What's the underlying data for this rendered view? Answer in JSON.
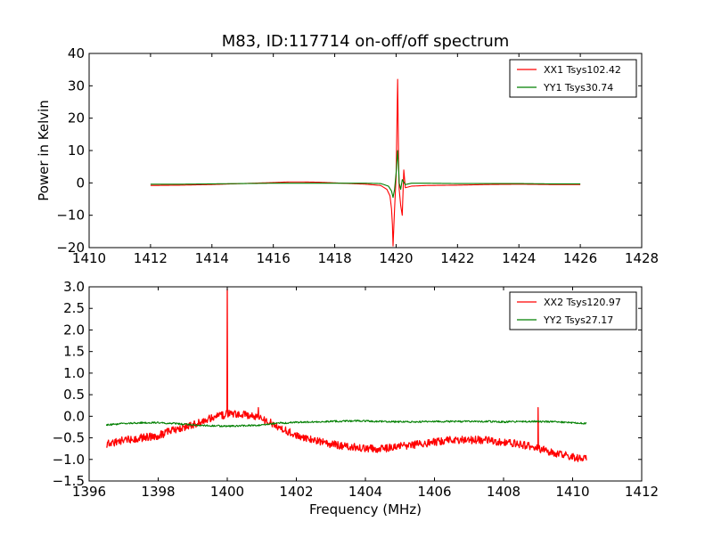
{
  "chart_data": [
    {
      "type": "line",
      "title": "M83, ID:117714 on-off/off spectrum",
      "xlabel": "",
      "ylabel": "Power in Kelvin",
      "xlim": [
        1410,
        1428
      ],
      "ylim": [
        -20,
        40
      ],
      "xticks": [
        1410,
        1412,
        1414,
        1416,
        1418,
        1420,
        1422,
        1424,
        1426,
        1428
      ],
      "yticks": [
        -20,
        -10,
        0,
        10,
        20,
        30,
        40
      ],
      "grid": false,
      "legend": "top-right",
      "series": [
        {
          "name": "XX1 Tsys102.42",
          "color": "#ff0000",
          "x": [
            1412.0,
            1413.0,
            1414.0,
            1415.0,
            1416.0,
            1416.5,
            1417.0,
            1417.5,
            1418.0,
            1418.5,
            1419.0,
            1419.5,
            1419.7,
            1419.8,
            1419.85,
            1419.88,
            1419.9,
            1419.95,
            1420.0,
            1420.02,
            1420.05,
            1420.08,
            1420.1,
            1420.15,
            1420.2,
            1420.25,
            1420.3,
            1420.5,
            1421.0,
            1422.0,
            1423.0,
            1424.0,
            1425.0,
            1426.0
          ],
          "y": [
            -0.8,
            -0.7,
            -0.5,
            -0.2,
            0.1,
            0.3,
            0.3,
            0.2,
            0.0,
            -0.2,
            -0.4,
            -0.8,
            -2.0,
            -4.0,
            -8.0,
            -13.0,
            -19.5,
            -8.0,
            2.0,
            14.0,
            32.0,
            8.0,
            -2.0,
            -7.0,
            -10.0,
            4.0,
            -1.5,
            -1.0,
            -0.8,
            -0.7,
            -0.5,
            -0.4,
            -0.5,
            -0.5
          ]
        },
        {
          "name": "YY1 Tsys30.74",
          "color": "#007f00",
          "x": [
            1412.0,
            1413.0,
            1414.0,
            1415.0,
            1416.0,
            1417.0,
            1418.0,
            1419.0,
            1419.5,
            1419.75,
            1419.85,
            1419.9,
            1419.95,
            1420.0,
            1420.05,
            1420.08,
            1420.1,
            1420.15,
            1420.2,
            1420.3,
            1420.5,
            1421.0,
            1422.0,
            1423.0,
            1424.0,
            1425.0,
            1426.0
          ],
          "y": [
            -0.4,
            -0.4,
            -0.3,
            -0.2,
            -0.1,
            -0.1,
            -0.1,
            -0.1,
            -0.2,
            -1.0,
            -2.5,
            -4.5,
            -2.0,
            3.0,
            10.0,
            5.0,
            0.0,
            -2.0,
            1.0,
            -0.5,
            -0.1,
            -0.1,
            -0.2,
            -0.2,
            -0.2,
            -0.3,
            -0.3
          ]
        }
      ]
    },
    {
      "type": "line",
      "title": "",
      "xlabel": "Frequency (MHz)",
      "ylabel": "",
      "xlim": [
        1396,
        1412
      ],
      "ylim": [
        -1.5,
        3.0
      ],
      "xticks": [
        1396,
        1398,
        1400,
        1402,
        1404,
        1406,
        1408,
        1410,
        1412
      ],
      "yticks": [
        -1.5,
        -1.0,
        -0.5,
        0.0,
        0.5,
        1.0,
        1.5,
        2.0,
        2.5,
        3.0
      ],
      "grid": false,
      "legend": "top-right",
      "series": [
        {
          "name": "XX2 Tsys120.97",
          "color": "#ff0000",
          "x": [
            1396.5,
            1397.0,
            1397.5,
            1398.0,
            1398.5,
            1399.0,
            1399.5,
            1400.0,
            1400.5,
            1401.0,
            1401.5,
            1402.0,
            1402.5,
            1403.0,
            1403.5,
            1404.0,
            1404.5,
            1405.0,
            1405.5,
            1406.0,
            1406.5,
            1407.0,
            1407.5,
            1408.0,
            1408.5,
            1409.0,
            1409.5,
            1410.0,
            1410.4
          ],
          "y": [
            -0.65,
            -0.55,
            -0.5,
            -0.45,
            -0.3,
            -0.2,
            -0.05,
            0.05,
            0.05,
            -0.05,
            -0.25,
            -0.45,
            -0.55,
            -0.65,
            -0.7,
            -0.75,
            -0.75,
            -0.7,
            -0.65,
            -0.6,
            -0.55,
            -0.55,
            -0.55,
            -0.6,
            -0.65,
            -0.75,
            -0.85,
            -0.95,
            -1.0
          ],
          "spikes": [
            {
              "x": 1400.0,
              "y": 2.95
            },
            {
              "x": 1400.9,
              "y": 0.2
            },
            {
              "x": 1409.0,
              "y": 0.2
            }
          ]
        },
        {
          "name": "YY2 Tsys27.17",
          "color": "#007f00",
          "x": [
            1396.5,
            1397.0,
            1397.5,
            1398.0,
            1398.5,
            1399.0,
            1399.5,
            1400.0,
            1400.5,
            1401.0,
            1401.5,
            1402.0,
            1402.5,
            1403.0,
            1403.5,
            1404.0,
            1404.5,
            1405.0,
            1405.5,
            1406.0,
            1406.5,
            1407.0,
            1407.5,
            1408.0,
            1408.5,
            1409.0,
            1409.5,
            1410.0,
            1410.4
          ],
          "y": [
            -0.2,
            -0.17,
            -0.15,
            -0.15,
            -0.17,
            -0.2,
            -0.22,
            -0.23,
            -0.22,
            -0.2,
            -0.16,
            -0.14,
            -0.13,
            -0.12,
            -0.11,
            -0.11,
            -0.12,
            -0.13,
            -0.13,
            -0.12,
            -0.12,
            -0.12,
            -0.12,
            -0.13,
            -0.12,
            -0.12,
            -0.13,
            -0.15,
            -0.17
          ]
        }
      ]
    }
  ]
}
